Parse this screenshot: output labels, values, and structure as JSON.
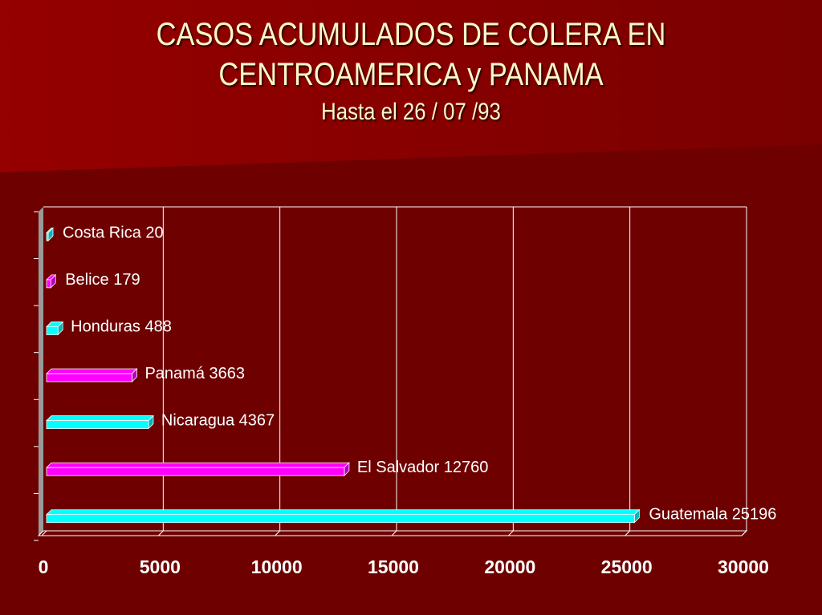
{
  "title": {
    "line1": "CASOS ACUMULADOS DE COLERA EN",
    "line2": "CENTROAMERICA y PANAMA",
    "subtitle": "Hasta el 26 / 07 /93"
  },
  "colors": {
    "background": "#6e0000",
    "title_text": "#fff8c8",
    "bar_cyan": "#00ffff",
    "bar_magenta": "#ff00ff"
  },
  "chart_data": {
    "type": "bar",
    "orientation": "horizontal",
    "title": "CASOS ACUMULADOS DE COLERA EN CENTROAMERICA y PANAMA",
    "subtitle": "Hasta el 26 / 07 /93",
    "xlabel": "",
    "ylabel": "",
    "xlim": [
      0,
      30000
    ],
    "xticks": [
      "0",
      "5000",
      "10000",
      "15000",
      "20000",
      "25000",
      "30000"
    ],
    "grid": true,
    "legend": "none",
    "categories": [
      "Costa Rica",
      "Belice",
      "Honduras",
      "Panamá",
      "Nicaragua",
      "El Salvador",
      "Guatemala"
    ],
    "values": [
      20,
      179,
      488,
      3663,
      4367,
      12760,
      25196
    ],
    "labels": [
      "Costa Rica 20",
      "Belice 179",
      "Honduras 488",
      "Panamá 3663",
      "Nicaragua 4367",
      "El Salvador 12760",
      "Guatemala 25196"
    ],
    "bar_colors": [
      "#00ffff",
      "#ff00ff",
      "#00ffff",
      "#ff00ff",
      "#00ffff",
      "#ff00ff",
      "#00ffff"
    ]
  }
}
